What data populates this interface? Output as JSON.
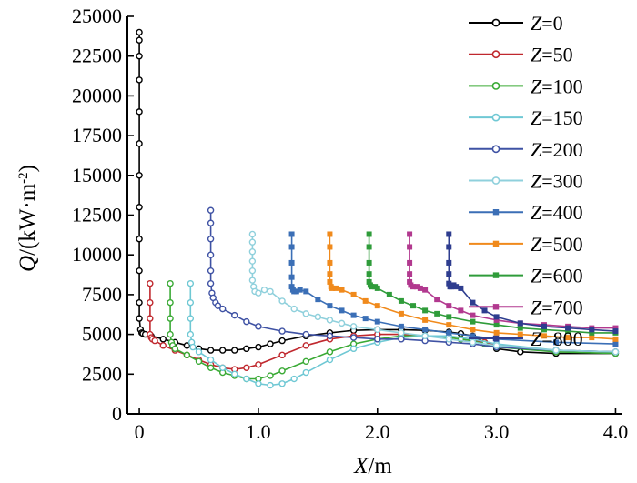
{
  "chart_data": {
    "type": "line",
    "title": "",
    "xlabel": {
      "var": "X",
      "unit": "/m"
    },
    "ylabel": {
      "var": "Q",
      "unit": "/(kW·m",
      "exp": "-2",
      "close": ")"
    },
    "xlim": [
      -0.1,
      4.05
    ],
    "ylim": [
      0,
      25000
    ],
    "x_ticks": [
      0,
      1,
      2,
      3,
      4
    ],
    "x_tick_labels": [
      "0",
      "1.0",
      "2.0",
      "3.0",
      "4.0"
    ],
    "y_ticks": [
      0,
      2500,
      5000,
      7500,
      10000,
      12500,
      15000,
      17500,
      20000,
      22500,
      25000
    ],
    "y_tick_labels": [
      "0",
      "2500",
      "5000",
      "7500",
      "10000",
      "12500",
      "15000",
      "17500",
      "20000",
      "22500",
      "25000"
    ],
    "grid": false,
    "legend_position": "top-right",
    "series": [
      {
        "name": "Z=0",
        "label_var": "Z",
        "label_val": "=0",
        "color": "#000000",
        "marker": "circle",
        "x": [
          0.0,
          0.0,
          0.0,
          0.0,
          0.0,
          0.0,
          0.0,
          0.0,
          0.0,
          0.0,
          0.0,
          0.0,
          0.01,
          0.02,
          0.03,
          0.05,
          0.1,
          0.2,
          0.3,
          0.4,
          0.5,
          0.6,
          0.7,
          0.8,
          0.9,
          1.0,
          1.1,
          1.2,
          1.4,
          1.6,
          1.8,
          2.0,
          2.2,
          2.4,
          2.6,
          2.7,
          2.8,
          2.9,
          3.0,
          3.2,
          3.5,
          4.0
        ],
        "y": [
          24000,
          23500,
          22500,
          21000,
          19000,
          17000,
          15000,
          13000,
          11000,
          9000,
          7000,
          6000,
          5300,
          5100,
          5050,
          5000,
          4900,
          4700,
          4500,
          4300,
          4100,
          4000,
          4000,
          4000,
          4100,
          4200,
          4400,
          4600,
          4900,
          5100,
          5250,
          5300,
          5300,
          5250,
          5150,
          5050,
          4900,
          4500,
          4100,
          3900,
          3800,
          3800
        ]
      },
      {
        "name": "Z=50",
        "label_var": "Z",
        "label_val": "=50",
        "color": "#c0282e",
        "marker": "circle",
        "x": [
          0.09,
          0.09,
          0.09,
          0.09,
          0.1,
          0.11,
          0.13,
          0.2,
          0.3,
          0.4,
          0.5,
          0.6,
          0.7,
          0.8,
          0.9,
          1.0,
          1.2,
          1.4,
          1.6,
          1.8,
          2.0,
          2.2,
          2.4,
          2.6,
          2.7,
          2.8,
          2.9,
          3.0,
          3.5,
          4.0
        ],
        "y": [
          8200,
          7000,
          6000,
          5000,
          4800,
          4700,
          4600,
          4300,
          4000,
          3700,
          3400,
          3100,
          2900,
          2800,
          2900,
          3100,
          3700,
          4300,
          4700,
          4900,
          5000,
          5000,
          4900,
          4800,
          4700,
          4600,
          4500,
          4300,
          4000,
          3900
        ]
      },
      {
        "name": "Z=100",
        "label_var": "Z",
        "label_val": "=100",
        "color": "#3aaa35",
        "marker": "circle",
        "x": [
          0.26,
          0.26,
          0.26,
          0.26,
          0.27,
          0.28,
          0.3,
          0.4,
          0.5,
          0.6,
          0.7,
          0.8,
          0.9,
          1.0,
          1.1,
          1.2,
          1.4,
          1.6,
          1.8,
          2.0,
          2.2,
          2.4,
          2.6,
          2.7,
          2.8,
          2.9,
          3.0,
          3.5,
          4.0
        ],
        "y": [
          8200,
          7000,
          6000,
          5000,
          4500,
          4300,
          4100,
          3700,
          3300,
          2900,
          2600,
          2400,
          2200,
          2200,
          2400,
          2700,
          3300,
          3900,
          4400,
          4700,
          4900,
          4900,
          4800,
          4700,
          4600,
          4400,
          4200,
          3900,
          3800
        ]
      },
      {
        "name": "Z=150",
        "label_var": "Z",
        "label_val": "=150",
        "color": "#6fc8d4",
        "marker": "circle",
        "x": [
          0.43,
          0.43,
          0.43,
          0.43,
          0.44,
          0.45,
          0.5,
          0.6,
          0.7,
          0.8,
          0.9,
          1.0,
          1.1,
          1.2,
          1.3,
          1.4,
          1.6,
          1.8,
          2.0,
          2.2,
          2.4,
          2.6,
          2.8,
          3.0,
          3.5,
          4.0
        ],
        "y": [
          8200,
          7000,
          6000,
          5000,
          4500,
          4200,
          3900,
          3400,
          2900,
          2500,
          2200,
          1900,
          1800,
          1900,
          2200,
          2600,
          3400,
          4100,
          4500,
          4800,
          4900,
          4900,
          4700,
          4400,
          4000,
          3900
        ]
      },
      {
        "name": "Z=200",
        "label_var": "Z",
        "label_val": "=200",
        "color": "#3f52a4",
        "marker": "circle",
        "x": [
          0.6,
          0.6,
          0.6,
          0.6,
          0.6,
          0.6,
          0.61,
          0.62,
          0.64,
          0.66,
          0.7,
          0.8,
          0.9,
          1.0,
          1.2,
          1.4,
          1.6,
          1.8,
          2.0,
          2.2,
          2.4,
          2.6,
          2.8,
          3.0,
          3.5,
          4.0
        ],
        "y": [
          12800,
          12000,
          11000,
          10000,
          9000,
          8200,
          7600,
          7300,
          7000,
          6800,
          6600,
          6200,
          5800,
          5500,
          5200,
          5000,
          4900,
          4800,
          4700,
          4700,
          4600,
          4500,
          4400,
          4200,
          4000,
          3900
        ]
      },
      {
        "name": "Z=300",
        "label_var": "Z",
        "label_val": "=300",
        "color": "#8fd0dc",
        "marker": "circle",
        "x": [
          0.95,
          0.95,
          0.95,
          0.95,
          0.95,
          0.95,
          0.96,
          0.97,
          1.0,
          1.05,
          1.1,
          1.2,
          1.3,
          1.4,
          1.5,
          1.6,
          1.7,
          1.8,
          2.0,
          2.2,
          2.4,
          2.6,
          2.8,
          3.0,
          3.5,
          4.0
        ],
        "y": [
          11300,
          10800,
          10200,
          9600,
          9000,
          8400,
          8000,
          7700,
          7600,
          7800,
          7700,
          7100,
          6600,
          6300,
          6100,
          5900,
          5700,
          5500,
          5300,
          5100,
          4900,
          4700,
          4500,
          4300,
          4000,
          3900
        ]
      },
      {
        "name": "Z=400",
        "label_var": "Z",
        "label_val": "=400",
        "color": "#3b6fb6",
        "marker": "square",
        "x": [
          1.28,
          1.28,
          1.28,
          1.28,
          1.28,
          1.29,
          1.3,
          1.32,
          1.35,
          1.4,
          1.5,
          1.6,
          1.7,
          1.8,
          1.9,
          2.0,
          2.2,
          2.4,
          2.6,
          2.8,
          3.0,
          3.5,
          4.0
        ],
        "y": [
          11300,
          10500,
          9500,
          8600,
          8000,
          7800,
          7700,
          7700,
          7800,
          7700,
          7200,
          6800,
          6500,
          6200,
          6000,
          5800,
          5500,
          5300,
          5100,
          4900,
          4700,
          4500,
          4400
        ]
      },
      {
        "name": "Z=500",
        "label_var": "Z",
        "label_val": "=500",
        "color": "#f08a1c",
        "marker": "square",
        "x": [
          1.6,
          1.6,
          1.6,
          1.6,
          1.6,
          1.61,
          1.62,
          1.65,
          1.7,
          1.8,
          1.9,
          2.0,
          2.2,
          2.4,
          2.6,
          2.8,
          3.0,
          3.2,
          3.4,
          3.6,
          3.8,
          4.0
        ],
        "y": [
          11300,
          10500,
          9500,
          8800,
          8300,
          8000,
          7900,
          7900,
          7800,
          7500,
          7100,
          6800,
          6300,
          5900,
          5600,
          5300,
          5100,
          5000,
          4900,
          4800,
          4800,
          4700
        ]
      },
      {
        "name": "Z=600",
        "label_var": "Z",
        "label_val": "=600",
        "color": "#2f9c3a",
        "marker": "square",
        "x": [
          1.93,
          1.93,
          1.93,
          1.93,
          1.93,
          1.94,
          1.95,
          1.98,
          2.0,
          2.1,
          2.2,
          2.3,
          2.4,
          2.5,
          2.6,
          2.8,
          3.0,
          3.2,
          3.4,
          3.6,
          3.8,
          4.0
        ],
        "y": [
          11300,
          10500,
          9500,
          8800,
          8300,
          8100,
          8000,
          8000,
          7900,
          7500,
          7100,
          6800,
          6500,
          6300,
          6100,
          5800,
          5600,
          5400,
          5300,
          5200,
          5100,
          5100
        ]
      },
      {
        "name": "Z=700",
        "label_var": "Z",
        "label_val": "=700",
        "color": "#b2398f",
        "marker": "square",
        "x": [
          2.27,
          2.27,
          2.27,
          2.27,
          2.27,
          2.28,
          2.3,
          2.33,
          2.36,
          2.4,
          2.5,
          2.6,
          2.7,
          2.8,
          3.0,
          3.2,
          3.4,
          3.6,
          3.8,
          4.0
        ],
        "y": [
          11300,
          10500,
          9500,
          8800,
          8300,
          8100,
          8000,
          8000,
          7900,
          7800,
          7200,
          6800,
          6500,
          6200,
          5900,
          5700,
          5600,
          5500,
          5400,
          5400
        ]
      },
      {
        "name": "Z=800",
        "label_var": "Z",
        "label_val": "=800",
        "color": "#2e3d8f",
        "marker": "square",
        "x": [
          2.6,
          2.6,
          2.6,
          2.6,
          2.6,
          2.61,
          2.62,
          2.64,
          2.66,
          2.7,
          2.8,
          2.9,
          3.0,
          3.2,
          3.4,
          3.6,
          3.8,
          4.0
        ],
        "y": [
          11300,
          10500,
          9500,
          8800,
          8200,
          8000,
          8000,
          8100,
          8000,
          7900,
          7000,
          6500,
          6100,
          5700,
          5500,
          5400,
          5300,
          5200
        ]
      }
    ]
  }
}
